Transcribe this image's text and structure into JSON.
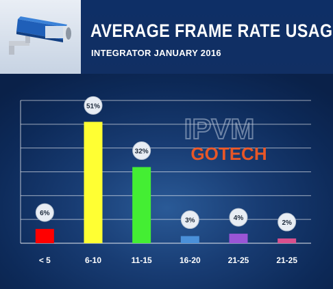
{
  "header": {
    "title": "AVERAGE FRAME RATE USAGE",
    "subtitle": "INTEGRATOR JANUARY 2016",
    "thumbnail_icon": "security-camera-icon"
  },
  "watermark": {
    "line1": "IPVM",
    "line2": "GOTECH",
    "accent_color": "#ff5a1f"
  },
  "chart_data": {
    "type": "bar",
    "title": "AVERAGE FRAME RATE USAGE",
    "subtitle": "INTEGRATOR JANUARY 2016",
    "xlabel": "",
    "ylabel": "",
    "ylim": [
      0,
      60
    ],
    "grid": true,
    "legend": "none",
    "categories": [
      "< 5",
      "6-10",
      "11-15",
      "16-20",
      "21-25",
      "21-25"
    ],
    "values": [
      6,
      51,
      32,
      3,
      4,
      2
    ],
    "data_labels": [
      "6%",
      "51%",
      "32%",
      "3%",
      "4%",
      "2%"
    ],
    "colors": [
      "#ff0000",
      "#ffff33",
      "#44ee33",
      "#4a90d9",
      "#9a55d6",
      "#d9508d"
    ]
  }
}
